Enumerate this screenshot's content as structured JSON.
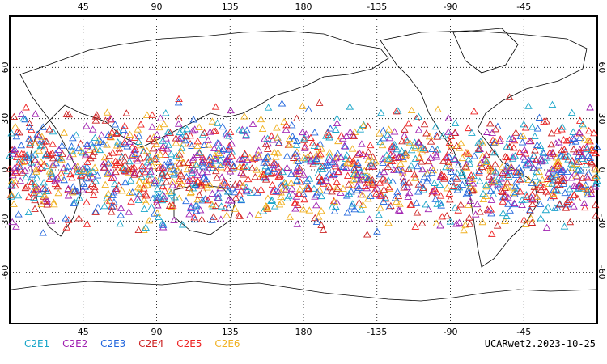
{
  "map": {
    "lon_ticks": [
      "45",
      "90",
      "135",
      "180",
      "-135",
      "-90",
      "-45"
    ],
    "lat_ticks": [
      "60",
      "30",
      "0",
      "-30",
      "-60"
    ],
    "lon_range": [
      0,
      360
    ],
    "lat_range": [
      -90,
      90
    ],
    "grid": "dotted",
    "marker": "triangle-outline",
    "lat_coverage": [
      -45,
      45
    ]
  },
  "legend": [
    {
      "label": "C2E1",
      "color": "#1aa6c9"
    },
    {
      "label": "C2E2",
      "color": "#a020b0"
    },
    {
      "label": "C2E3",
      "color": "#2266dd"
    },
    {
      "label": "C2E4",
      "color": "#cc2222"
    },
    {
      "label": "C2E5",
      "color": "#ee2020"
    },
    {
      "label": "C2E6",
      "color": "#f0b020"
    }
  ],
  "footer": {
    "label": "UCARwet2.2023-10-25"
  }
}
